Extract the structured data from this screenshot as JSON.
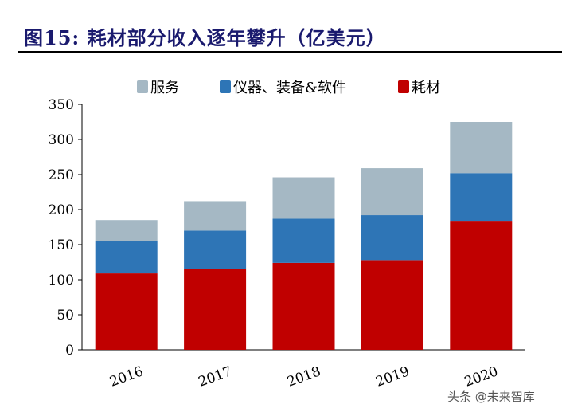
{
  "title": "图15:  耗材部分收入逐年攀升（亿美元）",
  "watermark": "头条 @未来智库",
  "chart_data": {
    "type": "bar",
    "stacked": true,
    "categories": [
      "2016",
      "2017",
      "2018",
      "2019",
      "2020"
    ],
    "series": [
      {
        "name": "耗材",
        "color": "#c00000",
        "values": [
          109,
          115,
          124,
          128,
          184
        ]
      },
      {
        "name": "仪器、装备&软件",
        "color": "#2e75b6",
        "values": [
          46,
          55,
          63,
          64,
          68
        ]
      },
      {
        "name": "服务",
        "color": "#a5b8c4",
        "values": [
          30,
          42,
          59,
          67,
          73
        ]
      }
    ],
    "legend_order": [
      "服务",
      "仪器、装备&软件",
      "耗材"
    ],
    "ylim": [
      0,
      350
    ],
    "yticks": [
      "0",
      "50",
      "100",
      "150",
      "200",
      "250",
      "300",
      "350"
    ],
    "grid": false,
    "legend": "top"
  }
}
